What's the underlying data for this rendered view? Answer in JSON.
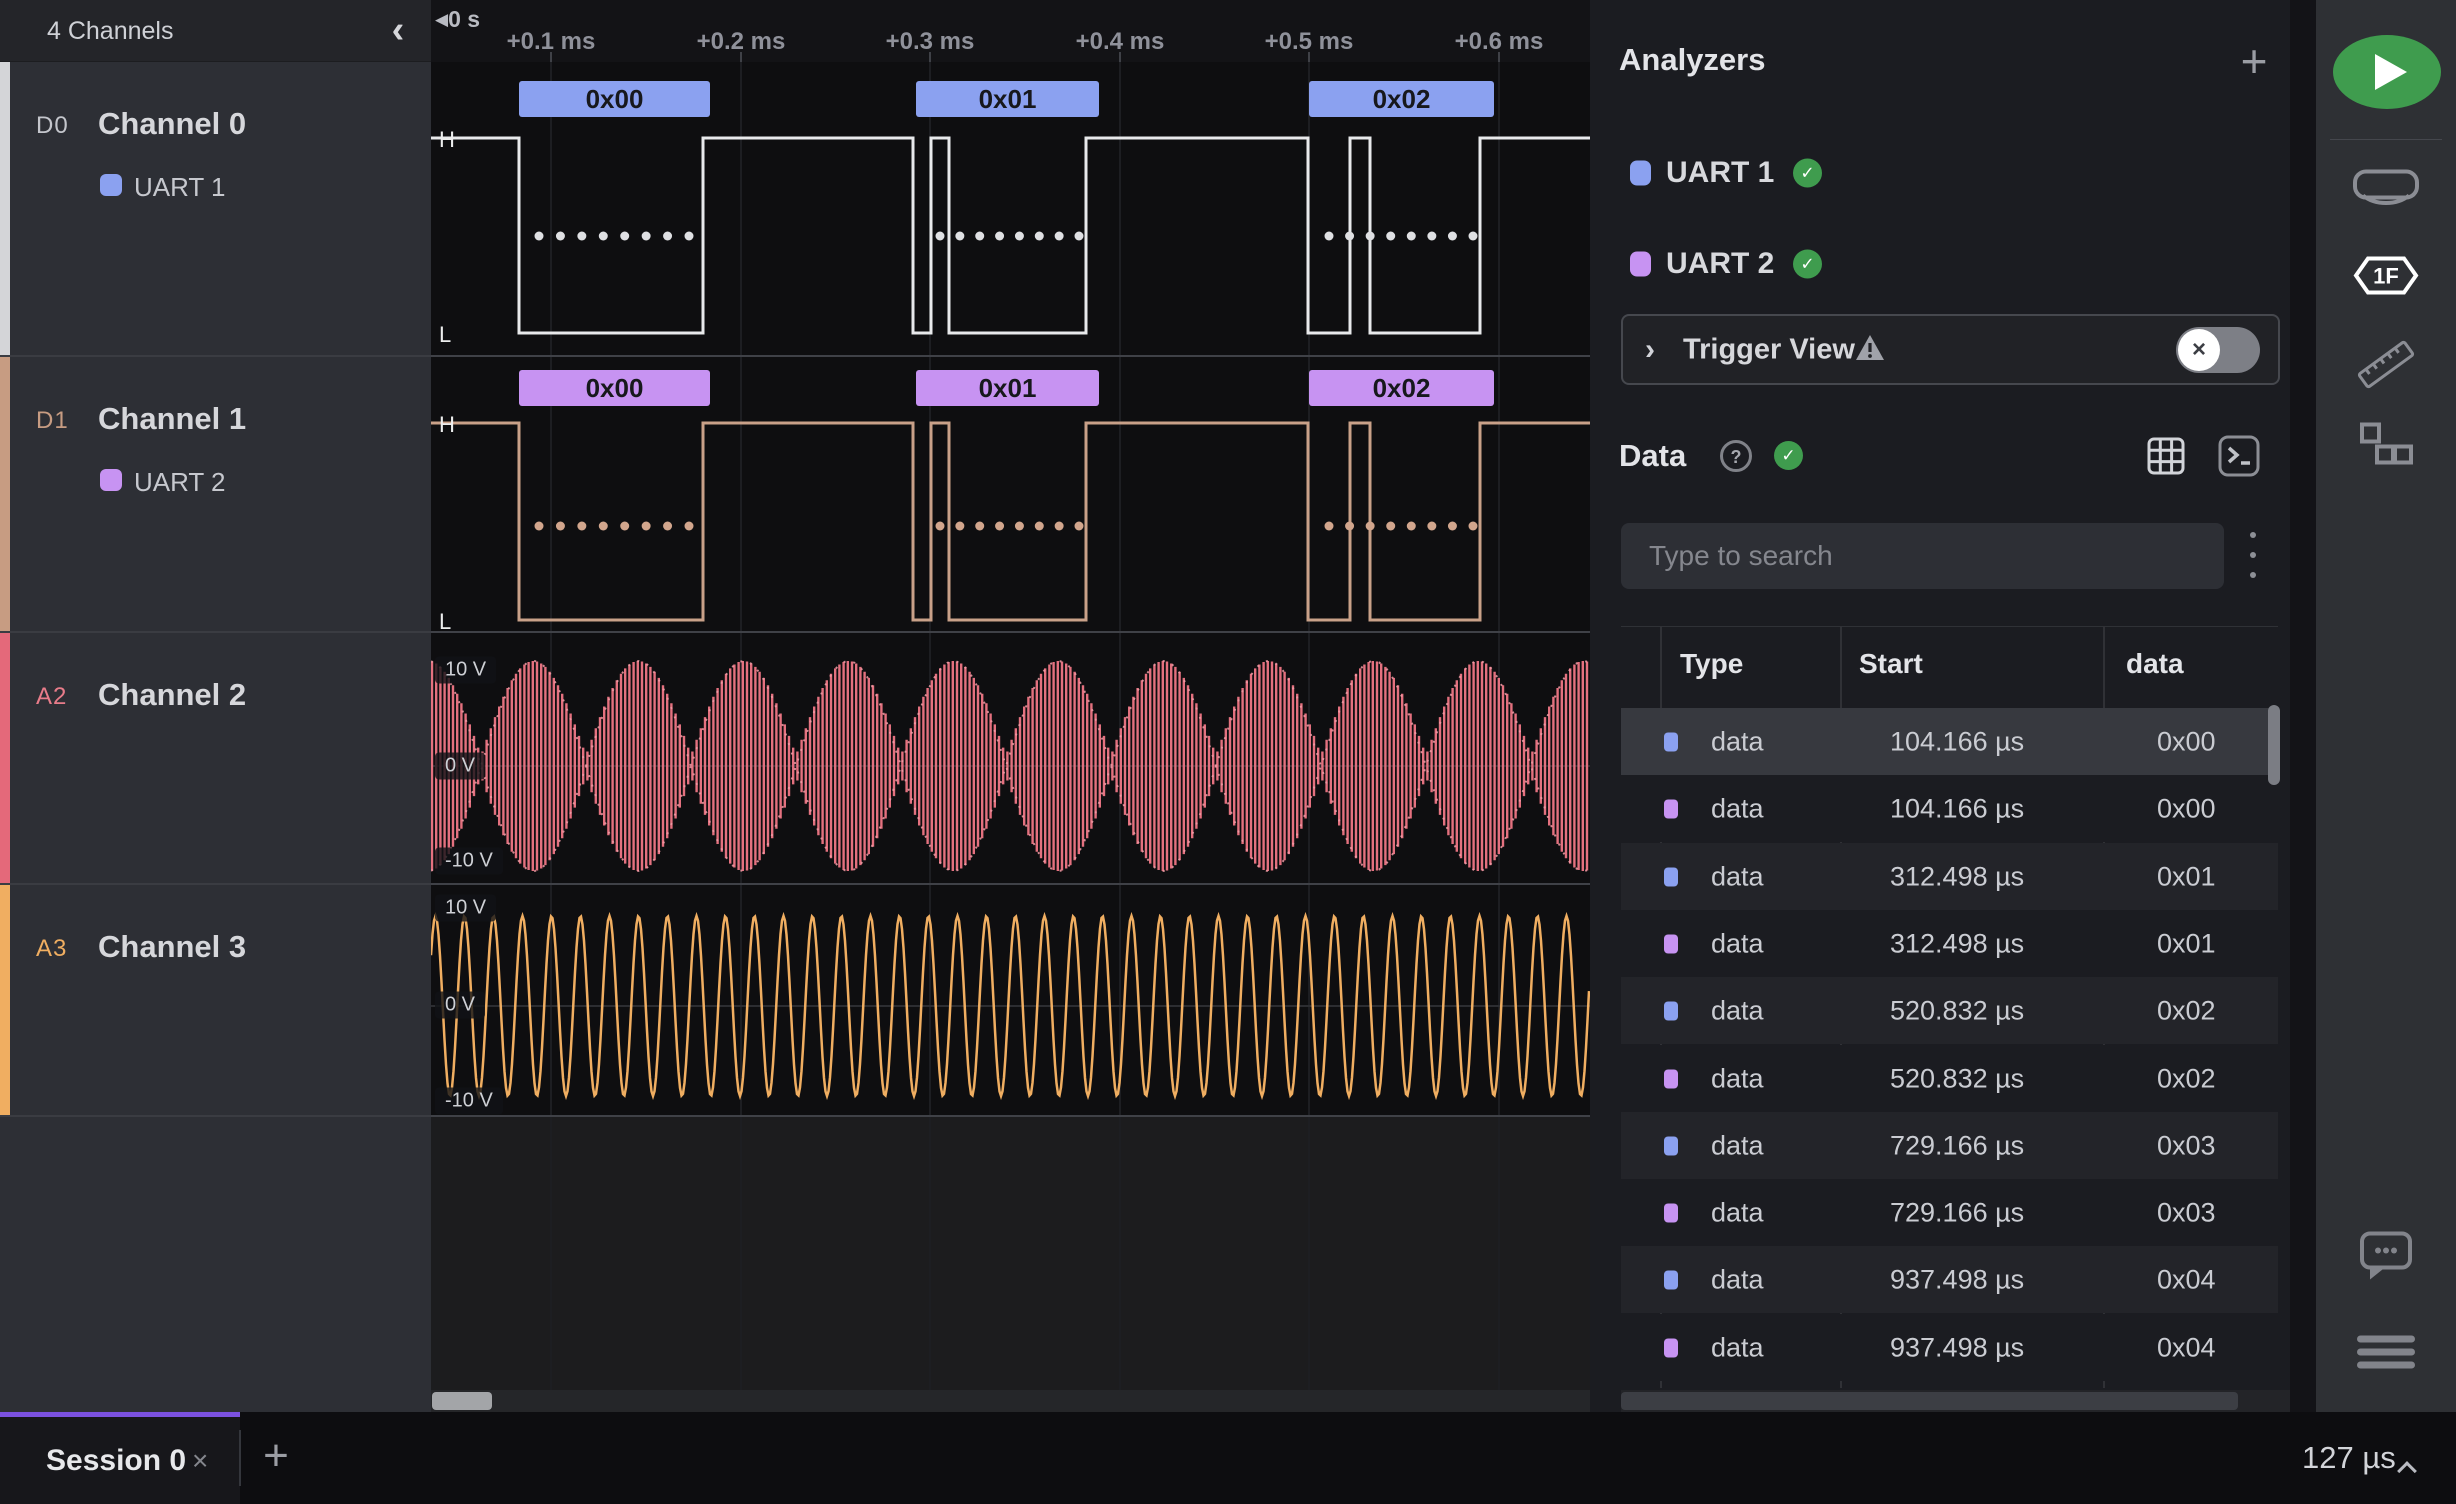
{
  "app": {
    "accent_purple": "#7b51e0",
    "green": "#3f9c4e"
  },
  "sidebar": {
    "header": "4 Channels",
    "collapse_icon": "chevron-left",
    "channels": [
      {
        "id": "D0",
        "name": "Channel 0",
        "analyzer": "UART 1",
        "type": "digital",
        "strip_color": "#d4d5d8",
        "id_color": "#c4c6cc",
        "analyzer_color": "#8ba1f0",
        "trace_color": "#e8e9eb",
        "bubble_color": "#8ba1f0",
        "dot_color": "#dfe0e3"
      },
      {
        "id": "D1",
        "name": "Channel 1",
        "analyzer": "UART 2",
        "type": "digital",
        "strip_color": "#c79c82",
        "id_color": "#c79c82",
        "analyzer_color": "#c793f2",
        "trace_color": "#c9a189",
        "bubble_color": "#c793f2",
        "dot_color": "#d2a68d"
      },
      {
        "id": "A2",
        "name": "Channel 2",
        "type": "analog_am",
        "strip_color": "#e4697a",
        "id_color": "#e87c8a",
        "trace_color": "#e4717f",
        "trace_color2": "#f29ca7"
      },
      {
        "id": "A3",
        "name": "Channel 3",
        "type": "analog_sine",
        "strip_color": "#f0ae61",
        "id_color": "#f0ae61",
        "trace_color": "#f0ae61"
      }
    ]
  },
  "timeline": {
    "origin": "0 s",
    "ticks": [
      "+0.1 ms",
      "+0.2 ms",
      "+0.3 ms",
      "+0.4 ms",
      "+0.5 ms",
      "+0.6 ms"
    ]
  },
  "waveforms": {
    "high_label": "H",
    "low_label": "L",
    "frame_labels": [
      "0x00",
      "0x01",
      "0x02"
    ],
    "volt_labels": [
      "10 V",
      "0 V",
      "-10 V"
    ]
  },
  "analyzers": {
    "title": "Analyzers",
    "add_label": "+",
    "items": [
      {
        "name": "UART 1",
        "color": "#8ba1f0",
        "status": "ok"
      },
      {
        "name": "UART 2",
        "color": "#c793f2",
        "status": "ok"
      }
    ],
    "trigger": {
      "label": "Trigger View",
      "enabled": false
    }
  },
  "data_panel": {
    "title": "Data",
    "status": "ok",
    "search_placeholder": "Type to search",
    "columns": [
      "Type",
      "Start",
      "data"
    ],
    "rows": [
      {
        "color": "#8ba1f0",
        "type": "data",
        "start": "104.166 µs",
        "value": "0x00",
        "selected": true
      },
      {
        "color": "#c793f2",
        "type": "data",
        "start": "104.166 µs",
        "value": "0x00",
        "selected": false
      },
      {
        "color": "#8ba1f0",
        "type": "data",
        "start": "312.498 µs",
        "value": "0x01",
        "selected": false
      },
      {
        "color": "#c793f2",
        "type": "data",
        "start": "312.498 µs",
        "value": "0x01",
        "selected": false
      },
      {
        "color": "#8ba1f0",
        "type": "data",
        "start": "520.832 µs",
        "value": "0x02",
        "selected": false
      },
      {
        "color": "#c793f2",
        "type": "data",
        "start": "520.832 µs",
        "value": "0x02",
        "selected": false
      },
      {
        "color": "#8ba1f0",
        "type": "data",
        "start": "729.166 µs",
        "value": "0x03",
        "selected": false
      },
      {
        "color": "#c793f2",
        "type": "data",
        "start": "729.166 µs",
        "value": "0x03",
        "selected": false
      },
      {
        "color": "#8ba1f0",
        "type": "data",
        "start": "937.498 µs",
        "value": "0x04",
        "selected": false
      },
      {
        "color": "#c793f2",
        "type": "data",
        "start": "937.498 µs",
        "value": "0x04",
        "selected": false
      }
    ]
  },
  "bottom_bar": {
    "session_tab": "Session 0",
    "close_icon": "×",
    "add_label": "+",
    "duration": "127 µs"
  },
  "chart_data": [
    {
      "type": "line",
      "subtype": "digital-uart",
      "channel": "Channel 0",
      "analyzer": "UART 1",
      "high": "H",
      "low": "L",
      "frames": [
        {
          "value": "0x00",
          "start": "104.166 µs"
        },
        {
          "value": "0x01",
          "start": "312.498 µs"
        },
        {
          "value": "0x02",
          "start": "520.832 µs"
        }
      ]
    },
    {
      "type": "line",
      "subtype": "digital-uart",
      "channel": "Channel 1",
      "analyzer": "UART 2",
      "high": "H",
      "low": "L",
      "frames": [
        {
          "value": "0x00",
          "start": "104.166 µs"
        },
        {
          "value": "0x01",
          "start": "312.498 µs"
        },
        {
          "value": "0x02",
          "start": "520.832 µs"
        }
      ]
    },
    {
      "type": "line",
      "subtype": "analog",
      "channel": "Channel 2",
      "y_tick_labels": [
        "10 V",
        "0 V",
        "-10 V"
      ],
      "ylim": [
        -10,
        10
      ],
      "shape": "dense amplitude-modulated sine (beat pattern, ~11 lobes visible)"
    },
    {
      "type": "line",
      "subtype": "analog",
      "channel": "Channel 3",
      "y_tick_labels": [
        "10 V",
        "0 V",
        "-10 V"
      ],
      "ylim": [
        -10,
        10
      ],
      "shape": "sine wave, ~40 cycles visible"
    }
  ]
}
